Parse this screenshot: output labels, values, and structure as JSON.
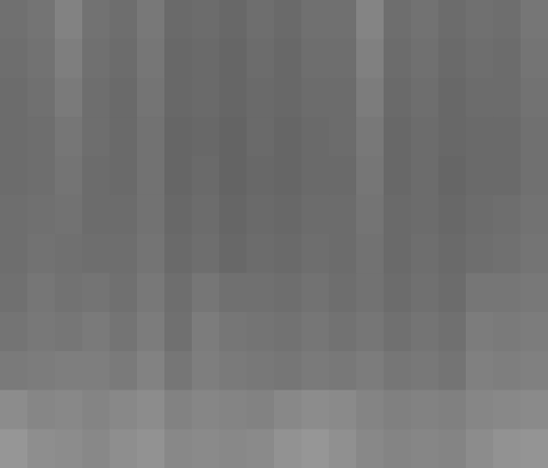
{
  "chart_data": {
    "type": "heatmap",
    "tick_labels": false,
    "zlim": [
      0,
      255
    ],
    "cells": [
      [
        112,
        116,
        130,
        114,
        110,
        120,
        106,
        108,
        104,
        110,
        106,
        112,
        112,
        132,
        110,
        114,
        108,
        112,
        110,
        118
      ],
      [
        110,
        114,
        126,
        112,
        108,
        118,
        104,
        106,
        102,
        108,
        104,
        110,
        110,
        128,
        108,
        112,
        106,
        110,
        108,
        116
      ],
      [
        108,
        112,
        122,
        110,
        106,
        116,
        104,
        106,
        102,
        106,
        104,
        108,
        108,
        124,
        106,
        110,
        104,
        108,
        108,
        114
      ],
      [
        108,
        110,
        118,
        110,
        106,
        114,
        102,
        104,
        100,
        106,
        102,
        106,
        108,
        120,
        104,
        108,
        104,
        106,
        106,
        112
      ],
      [
        108,
        110,
        116,
        108,
        106,
        114,
        102,
        106,
        100,
        104,
        102,
        106,
        106,
        118,
        104,
        108,
        102,
        106,
        106,
        112
      ],
      [
        110,
        112,
        114,
        108,
        108,
        114,
        104,
        108,
        102,
        106,
        104,
        108,
        108,
        116,
        106,
        108,
        104,
        108,
        110,
        114
      ],
      [
        110,
        114,
        112,
        110,
        110,
        116,
        106,
        110,
        104,
        108,
        106,
        110,
        108,
        114,
        106,
        110,
        106,
        110,
        112,
        116
      ],
      [
        112,
        118,
        114,
        116,
        112,
        120,
        110,
        118,
        112,
        112,
        110,
        114,
        110,
        114,
        108,
        112,
        108,
        118,
        118,
        120
      ],
      [
        116,
        120,
        118,
        122,
        116,
        124,
        112,
        124,
        118,
        116,
        114,
        118,
        114,
        118,
        112,
        116,
        112,
        124,
        122,
        124
      ],
      [
        122,
        124,
        126,
        126,
        122,
        130,
        118,
        126,
        122,
        120,
        118,
        122,
        120,
        124,
        118,
        120,
        116,
        128,
        126,
        128
      ],
      [
        140,
        134,
        136,
        132,
        136,
        140,
        130,
        134,
        132,
        130,
        136,
        140,
        138,
        132,
        128,
        130,
        128,
        134,
        136,
        138
      ],
      [
        150,
        142,
        140,
        136,
        142,
        146,
        136,
        138,
        136,
        138,
        146,
        150,
        144,
        136,
        132,
        134,
        132,
        140,
        146,
        148
      ]
    ]
  }
}
